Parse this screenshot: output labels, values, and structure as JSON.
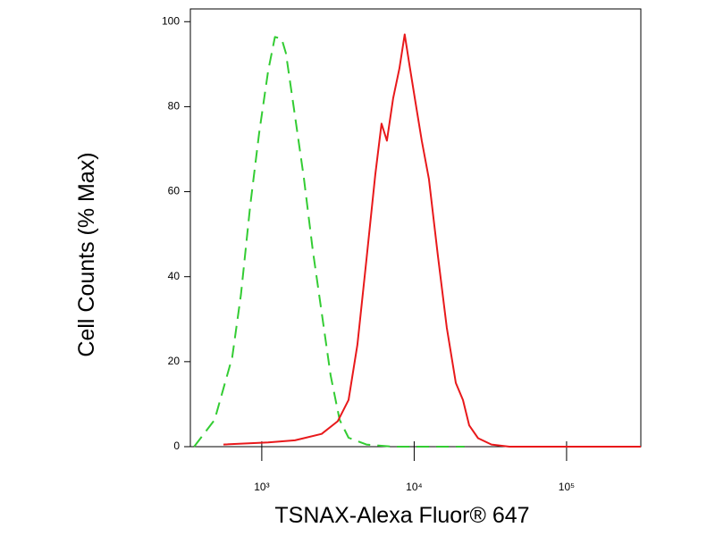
{
  "chart_data": {
    "type": "line",
    "x_label": "TSNAX-Alexa Fluor® 647",
    "y_label": "Cell Counts (% Max)",
    "x_scale": "log",
    "xlim": [
      340,
      307000
    ],
    "ylim": [
      0,
      103
    ],
    "xticks": [
      {
        "value": 1000,
        "label": "10³"
      },
      {
        "value": 10000,
        "label": "10⁴"
      },
      {
        "value": 100000,
        "label": "10⁵"
      }
    ],
    "yticks": [
      0,
      20,
      40,
      60,
      80,
      100
    ],
    "series": [
      {
        "color": "#33cc33",
        "dashed": true,
        "x": [
          360,
          490,
          640,
          730,
          840,
          960,
          1100,
          1220,
          1350,
          1440,
          1650,
          1890,
          2160,
          2470,
          2830,
          3240,
          3710,
          4860,
          7280,
          21400
        ],
        "values": [
          0,
          6.3,
          21,
          35.8,
          56.8,
          73.7,
          88.4,
          96.4,
          96,
          92.6,
          77.9,
          63.2,
          46.3,
          31.6,
          16.8,
          6.3,
          2.1,
          0.5,
          0,
          0
        ]
      },
      {
        "color": "#e8191b",
        "dashed": false,
        "x": [
          560,
          1100,
          1650,
          1890,
          2470,
          3150,
          3710,
          4240,
          4860,
          5560,
          6110,
          6360,
          6620,
          7280,
          8000,
          8670,
          9290,
          10200,
          11220,
          12500,
          14300,
          16370,
          18750,
          20890,
          22960,
          26250,
          32150,
          42170,
          307000
        ],
        "values": [
          0.5,
          1,
          1.5,
          2,
          3,
          6,
          11,
          24,
          44,
          64,
          76,
          74,
          72,
          82,
          89,
          97,
          90,
          81,
          72,
          63,
          45,
          28,
          15,
          11,
          5,
          2,
          0.5,
          0,
          0
        ]
      }
    ]
  }
}
